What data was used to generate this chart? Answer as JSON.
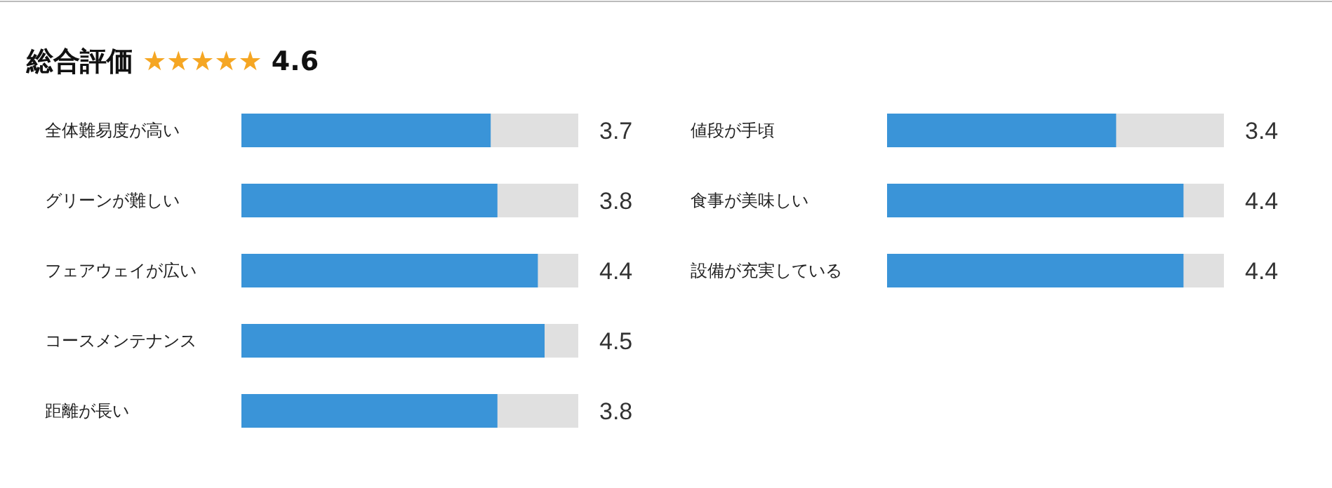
{
  "chart_data": [
    {
      "type": "bar",
      "orientation": "horizontal",
      "title": "総合評価 ★★★★★ 4.6",
      "categories": [
        "全体難易度が高い",
        "グリーンが難しい",
        "フェアウェイが広い",
        "コースメンテナンス",
        "距離が長い"
      ],
      "values": [
        3.7,
        3.8,
        4.4,
        4.5,
        3.8
      ],
      "color": "#3a94d8",
      "xlim": [
        0,
        5
      ],
      "data_labels": true
    },
    {
      "type": "bar",
      "orientation": "horizontal",
      "categories": [
        "値段が手頃",
        "食事が美味しい",
        "設備が充実している"
      ],
      "values": [
        3.4,
        4.4,
        4.4
      ],
      "color": "#3a94d8",
      "xlim": [
        0,
        5
      ],
      "data_labels": true
    }
  ]
}
